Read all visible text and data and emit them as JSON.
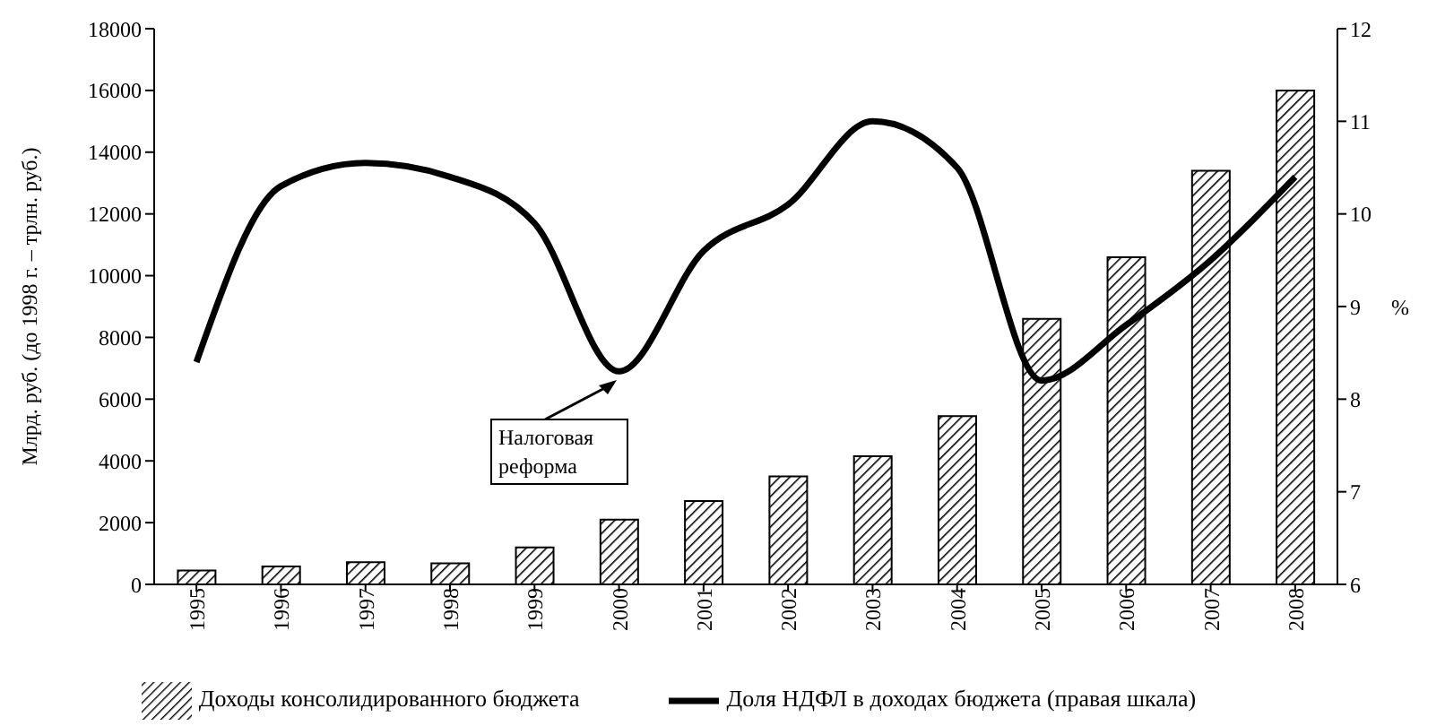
{
  "chart_data": {
    "type": "bar",
    "categories": [
      "1995",
      "1996",
      "1997",
      "1998",
      "1999",
      "2000",
      "2001",
      "2002",
      "2003",
      "2004",
      "2005",
      "2006",
      "2007",
      "2008"
    ],
    "ylabel": "Млрд. руб. (до 1998 г. – трлн. руб.)",
    "y2label": "%",
    "series": [
      {
        "name": "Доходы консолидированного бюджета",
        "color": "#000000",
        "values": [
          450,
          580,
          720,
          680,
          1200,
          2100,
          2700,
          3500,
          4150,
          5450,
          8600,
          10600,
          13400,
          16000
        ]
      },
      {
        "name": "Доля НДФЛ в доходах бюджета (правая шкала)",
        "type": "line",
        "axis": "y2",
        "color": "#000000",
        "values": [
          8.4,
          10.3,
          10.55,
          10.4,
          9.9,
          8.3,
          9.6,
          10.1,
          11.0,
          10.5,
          8.2,
          8.8,
          9.5,
          10.4
        ]
      }
    ],
    "ylim": [
      0,
      18000
    ],
    "yticks": [
      0,
      2000,
      4000,
      6000,
      8000,
      10000,
      12000,
      14000,
      16000,
      18000
    ],
    "y2lim": [
      6,
      12
    ],
    "y2ticks": [
      6,
      7,
      8,
      9,
      10,
      11,
      12
    ],
    "annotations": [
      "Налоговая реформа"
    ],
    "grid": false,
    "legend": "bottom",
    "marker": "none",
    "line_style": "solid"
  }
}
